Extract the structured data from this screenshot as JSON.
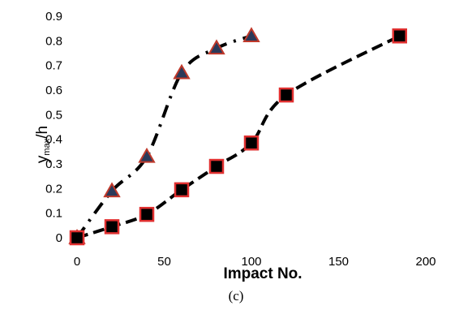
{
  "chart_data": {
    "type": "scatter",
    "xlabel": "Impact No.",
    "ylabel": {
      "main": "y",
      "subscript": "max",
      "suffix": "/h"
    },
    "xlim": [
      0,
      200
    ],
    "ylim": [
      0,
      0.9
    ],
    "xticks": [
      "0",
      "50",
      "100",
      "150",
      "200"
    ],
    "yticks": [
      "0",
      "0.1",
      "0.2",
      "0.3",
      "0.4",
      "0.5",
      "0.6",
      "0.7",
      "0.8",
      "0.9"
    ],
    "grid": false,
    "series": [
      {
        "marker": "triangle",
        "marker_fill": "#2b3a5a",
        "marker_edge": "#c0392b",
        "line_style": "dash-dot",
        "x": [
          0,
          20,
          40,
          60,
          80,
          100
        ],
        "y": [
          0,
          0.19,
          0.33,
          0.67,
          0.77,
          0.82
        ]
      },
      {
        "marker": "square",
        "marker_fill": "#000000",
        "marker_edge": "#e03030",
        "line_style": "dashed",
        "x": [
          0,
          20,
          40,
          60,
          80,
          100,
          120,
          185
        ],
        "y": [
          0,
          0.045,
          0.095,
          0.195,
          0.29,
          0.385,
          0.58,
          0.82
        ]
      }
    ]
  },
  "caption": "(c)"
}
